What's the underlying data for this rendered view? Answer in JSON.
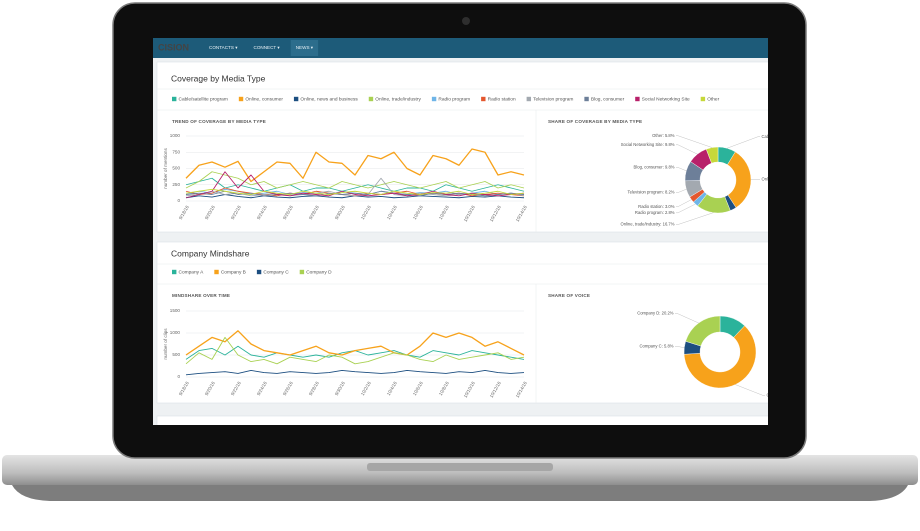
{
  "nav": {
    "logo": "CISION",
    "items": [
      "CONTACTS ▾",
      "CONNECT ▾",
      "NEWS ▾"
    ]
  },
  "panels": [
    {
      "title": "Coverage by Media Type",
      "charts": [
        {
          "type": "line",
          "title": "TREND OF COVERAGE BY MEDIA TYPE",
          "y_label": "number of mentions",
          "categories": [
            "9/18/16",
            null,
            "9/20/16",
            null,
            "9/22/16",
            null,
            "9/24/16",
            null,
            "9/26/16",
            null,
            "9/28/16",
            null,
            "9/30/16",
            null,
            "10/2/16",
            null,
            "10/4/16",
            null,
            "10/6/16",
            null,
            "10/8/16",
            null,
            "10/10/16",
            null,
            "10/12/16",
            null,
            "10/14/16"
          ],
          "ylim": [
            0,
            1000
          ],
          "yticks": [
            0,
            250,
            500,
            750,
            1000
          ],
          "grid": true,
          "series": [
            {
              "name": "Cable/satellite program",
              "color": "#2bb39b",
              "values": [
                250,
                300,
                350,
                200,
                250,
                200,
                150,
                200,
                250,
                150,
                200,
                200,
                150,
                200,
                250,
                200,
                150,
                200,
                200,
                150,
                250,
                200,
                150,
                200,
                250,
                200,
                150
              ]
            },
            {
              "name": "Online, consumer",
              "color": "#f7a21b",
              "values": [
                350,
                550,
                600,
                520,
                610,
                300,
                450,
                600,
                580,
                350,
                750,
                600,
                580,
                400,
                700,
                650,
                750,
                500,
                400,
                700,
                650,
                550,
                800,
                750,
                400,
                450,
                400
              ]
            },
            {
              "name": "Online, news and business",
              "color": "#1c4e80",
              "values": [
                50,
                80,
                60,
                100,
                70,
                50,
                80,
                60,
                50,
                70,
                80,
                60,
                50,
                80,
                60,
                70,
                50,
                60,
                80,
                70,
                60,
                50,
                70,
                60,
                80,
                60,
                50
              ]
            },
            {
              "name": "Online, trade/industry",
              "color": "#a9d152",
              "values": [
                200,
                300,
                450,
                400,
                350,
                250,
                300,
                200,
                250,
                300,
                250,
                200,
                300,
                250,
                200,
                250,
                300,
                250,
                200,
                250,
                300,
                200,
                250,
                300,
                200,
                250,
                200
              ]
            },
            {
              "name": "Radio program",
              "color": "#6fb5e8",
              "values": [
                100,
                150,
                120,
                180,
                150,
                100,
                120,
                150,
                100,
                130,
                120,
                100,
                150,
                120,
                100,
                150,
                120,
                100,
                130,
                120,
                150,
                100,
                120,
                150,
                100,
                120,
                100
              ]
            },
            {
              "name": "Radio station",
              "color": "#e4572e",
              "values": [
                150,
                100,
                120,
                200,
                150,
                120,
                100,
                80,
                120,
                100,
                150,
                120,
                100,
                80,
                120,
                100,
                120,
                150,
                100,
                120,
                100,
                120,
                80,
                100,
                120,
                100,
                80
              ]
            },
            {
              "name": "Television program",
              "color": "#a3a9b0",
              "values": [
                80,
                100,
                150,
                100,
                120,
                80,
                100,
                120,
                80,
                100,
                120,
                150,
                100,
                80,
                100,
                350,
                100,
                80,
                120,
                100,
                80,
                100,
                120,
                80,
                100,
                120,
                80
              ]
            },
            {
              "name": "Blog, consumer",
              "color": "#6d7f99",
              "values": [
                100,
                120,
                100,
                150,
                100,
                120,
                80,
                100,
                120,
                100,
                80,
                120,
                100,
                120,
                100,
                150,
                120,
                100,
                80,
                120,
                100,
                120,
                100,
                80,
                100,
                120,
                100
              ]
            },
            {
              "name": "Social Networking Site",
              "color": "#b8206a",
              "values": [
                50,
                100,
                150,
                450,
                200,
                400,
                150,
                100,
                80,
                120,
                100,
                80,
                150,
                100,
                80,
                100,
                120,
                80,
                100,
                150,
                100,
                80,
                120,
                100,
                80,
                100,
                120
              ]
            },
            {
              "name": "Other",
              "color": "#c6d83a",
              "values": [
                120,
                150,
                180,
                150,
                120,
                100,
                150,
                120,
                100,
                150,
                120,
                100,
                130,
                150,
                120,
                100,
                150,
                120,
                100,
                130,
                120,
                150,
                100,
                120,
                150,
                100,
                120
              ]
            }
          ]
        },
        {
          "type": "pie",
          "title": "SHARE OF COVERAGE BY MEDIA TYPE",
          "slices": [
            {
              "label": "Cable",
              "value": 8.8,
              "color": "#2bb39b"
            },
            {
              "label": "Online,",
              "value": 32.0,
              "color": "#f7a21b"
            },
            {
              "value": 3.1,
              "color": "#1c4e80"
            },
            {
              "label": "Online, trade/industry: 16.7%",
              "value": 16.7,
              "color": "#a9d152"
            },
            {
              "label": "Radio program: 2.8%",
              "value": 2.8,
              "color": "#6fb5e8"
            },
            {
              "label": "Radio station: 3.0%",
              "value": 3.0,
              "color": "#e4572e"
            },
            {
              "label": "Television program: 8.2%",
              "value": 8.2,
              "color": "#a3a9b0"
            },
            {
              "label": "Blog, consumer: 9.8%",
              "value": 9.8,
              "color": "#6d7f99"
            },
            {
              "label": "Social Networking Site: 9.8%",
              "value": 9.8,
              "color": "#b8206a"
            },
            {
              "label": "Other: 5.8%",
              "value": 5.8,
              "color": "#c6d83a"
            }
          ]
        }
      ]
    },
    {
      "title": "Company Mindshare",
      "charts": [
        {
          "type": "line",
          "title": "MINDSHARE OVER TIME",
          "y_label": "number of clips",
          "categories": [
            "9/18/16",
            null,
            "9/20/16",
            null,
            "9/22/16",
            null,
            "9/24/16",
            null,
            "9/26/16",
            null,
            "9/28/16",
            null,
            "9/30/16",
            null,
            "10/2/16",
            null,
            "10/4/16",
            null,
            "10/6/16",
            null,
            "10/8/16",
            null,
            "10/10/16",
            null,
            "10/12/16",
            null,
            "10/14/16"
          ],
          "ylim": [
            0,
            1500
          ],
          "yticks": [
            0,
            500,
            1000,
            1500
          ],
          "grid": true,
          "series": [
            {
              "name": "Company A",
              "color": "#2bb39b",
              "values": [
                400,
                600,
                650,
                500,
                700,
                500,
                450,
                550,
                500,
                450,
                500,
                450,
                550,
                600,
                500,
                550,
                600,
                500,
                450,
                600,
                550,
                500,
                600,
                550,
                500,
                450,
                400
              ]
            },
            {
              "name": "Company B",
              "color": "#f7a21b",
              "values": [
                500,
                700,
                900,
                800,
                1050,
                750,
                600,
                550,
                500,
                600,
                700,
                550,
                500,
                600,
                650,
                700,
                550,
                500,
                700,
                1000,
                900,
                1000,
                900,
                700,
                800,
                650,
                500
              ]
            },
            {
              "name": "Company C",
              "color": "#1c4e80",
              "values": [
                50,
                80,
                100,
                120,
                80,
                150,
                100,
                80,
                120,
                100,
                80,
                100,
                150,
                120,
                100,
                80,
                100,
                150,
                120,
                100,
                80,
                120,
                100,
                150,
                100,
                80,
                100
              ]
            },
            {
              "name": "Company D",
              "color": "#a9d152",
              "values": [
                300,
                550,
                400,
                900,
                500,
                350,
                400,
                300,
                450,
                400,
                350,
                500,
                450,
                300,
                350,
                450,
                550,
                500,
                400,
                350,
                500,
                400,
                450,
                500,
                550,
                400,
                450
              ]
            }
          ]
        },
        {
          "type": "pie",
          "title": "SHARE OF VOICE",
          "slices": [
            {
              "value": 12.0,
              "color": "#2bb39b"
            },
            {
              "label": "Company",
              "value": 62.0,
              "color": "#f7a21b"
            },
            {
              "label": "Company C: 5.8%",
              "value": 5.8,
              "color": "#1c4e80"
            },
            {
              "label": "Company D: 20.2%",
              "value": 20.2,
              "color": "#a9d152"
            }
          ]
        }
      ]
    }
  ]
}
